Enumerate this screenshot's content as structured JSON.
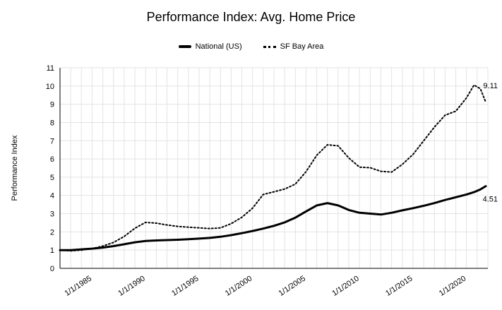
{
  "chart_data": {
    "type": "line",
    "title": "Performance Index: Avg. Home Price",
    "xlabel": "",
    "ylabel": "Performance Index",
    "xlim": [
      1982,
      2022
    ],
    "ylim": [
      0,
      11
    ],
    "grid": true,
    "legend_position": "top",
    "x": [
      1982,
      1983,
      1984,
      1985,
      1986,
      1987,
      1988,
      1989,
      1990,
      1991,
      1992,
      1993,
      1994,
      1995,
      1996,
      1997,
      1998,
      1999,
      2000,
      2001,
      2002,
      2003,
      2004,
      2005,
      2006,
      2007,
      2008,
      2009,
      2010,
      2011,
      2012,
      2013,
      2014,
      2015,
      2016,
      2017,
      2018,
      2019,
      2020,
      2020.7,
      2021.3,
      2021.8
    ],
    "series": [
      {
        "name": "National (US)",
        "style": "solid",
        "end_label": "4.51",
        "values": [
          1.0,
          1.0,
          1.04,
          1.08,
          1.14,
          1.22,
          1.32,
          1.43,
          1.5,
          1.53,
          1.55,
          1.57,
          1.6,
          1.63,
          1.67,
          1.73,
          1.82,
          1.93,
          2.05,
          2.18,
          2.33,
          2.52,
          2.78,
          3.12,
          3.45,
          3.58,
          3.45,
          3.2,
          3.05,
          3.0,
          2.95,
          3.05,
          3.18,
          3.3,
          3.43,
          3.58,
          3.75,
          3.9,
          4.05,
          4.18,
          4.33,
          4.51
        ]
      },
      {
        "name": "SF Bay Area",
        "style": "dotted",
        "end_label": "9.11",
        "values": [
          1.0,
          0.96,
          1.0,
          1.08,
          1.22,
          1.42,
          1.75,
          2.2,
          2.52,
          2.48,
          2.38,
          2.3,
          2.26,
          2.22,
          2.18,
          2.22,
          2.45,
          2.8,
          3.3,
          4.05,
          4.2,
          4.35,
          4.62,
          5.3,
          6.2,
          6.78,
          6.72,
          6.05,
          5.55,
          5.52,
          5.32,
          5.28,
          5.7,
          6.25,
          7.0,
          7.75,
          8.4,
          8.62,
          9.35,
          10.05,
          9.85,
          9.11
        ]
      }
    ],
    "x_ticks": [
      {
        "year": 1985,
        "label": "1/1/1985"
      },
      {
        "year": 1990,
        "label": "1/1/1990"
      },
      {
        "year": 1995,
        "label": "1/1/1995"
      },
      {
        "year": 2000,
        "label": "1/1/2000"
      },
      {
        "year": 2005,
        "label": "1/1/2005"
      },
      {
        "year": 2010,
        "label": "1/1/2010"
      },
      {
        "year": 2015,
        "label": "1/1/2015"
      },
      {
        "year": 2020,
        "label": "1/1/2020"
      }
    ],
    "y_ticks": [
      0,
      1,
      2,
      3,
      4,
      5,
      6,
      7,
      8,
      9,
      10,
      11
    ],
    "colors": {
      "line": "#000000",
      "grid": "#e3e3e3",
      "axis": "#000000",
      "background": "#ffffff",
      "text": "#000000"
    }
  }
}
